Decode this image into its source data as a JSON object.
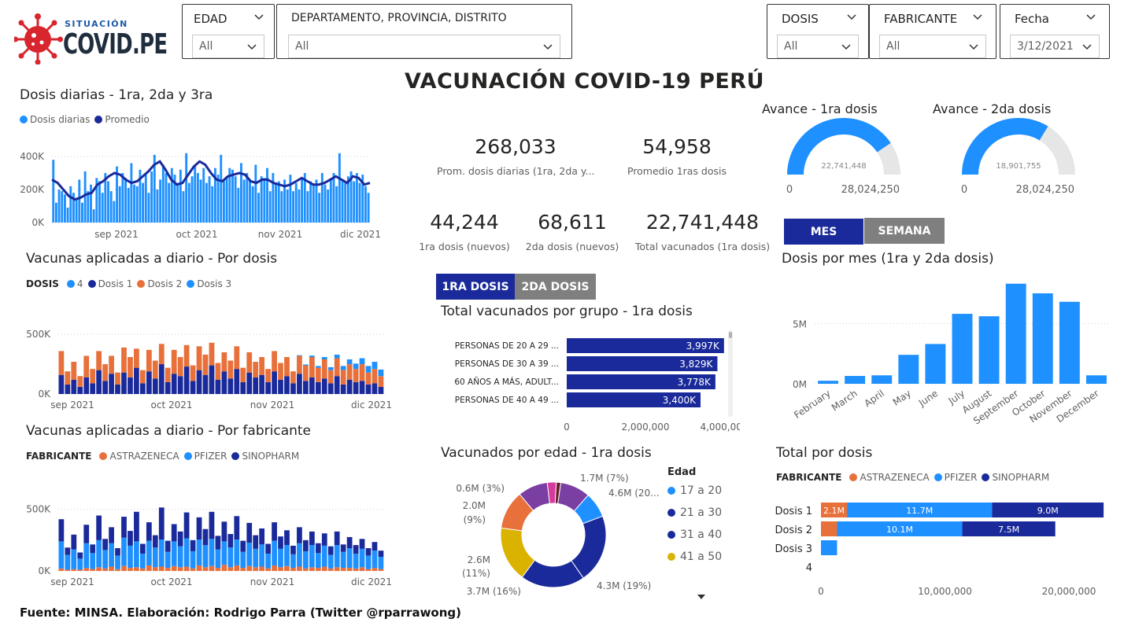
{
  "colors": {
    "blue_light": "#1e90ff",
    "navy": "#1a2a9a",
    "orange": "#e8703a",
    "gold": "#d9b300",
    "purple": "#7b3ea3",
    "magenta": "#d63a9e",
    "dark_red": "#6b1d2b",
    "gauge_bg": "#e6e6e6",
    "logo_red": "#d7262e",
    "grey_btn": "#7f7f7f"
  },
  "logo": {
    "top": "SITUACIÓN",
    "main": "COVID.PE"
  },
  "filters": {
    "edad": {
      "label": "EDAD",
      "value": "All"
    },
    "depto": {
      "label": "DEPARTAMENTO, PROVINCIA, DISTRITO",
      "value": "All"
    },
    "dosis": {
      "label": "DOSIS",
      "value": "All"
    },
    "fabricante": {
      "label": "FABRICANTE",
      "value": "All"
    },
    "fecha": {
      "label": "Fecha",
      "value": "3/12/2021"
    }
  },
  "main_title": "VACUNACIÓN COVID-19 PERÚ",
  "kpis": {
    "prom_dosis": {
      "value": "268,033",
      "label": "Prom. dosis diarias (1ra, 2da y..."
    },
    "prom_1ras": {
      "value": "54,958",
      "label": "Promedio 1ras dosis"
    },
    "dosis1": {
      "value": "44,244",
      "label": "1ra dosis (nuevos)"
    },
    "dosis2": {
      "value": "68,611",
      "label": "2da dosis (nuevos)"
    },
    "total_vac": {
      "value": "22,741,448",
      "label": "Total vacunados (1ra dosis)"
    }
  },
  "gauges": {
    "g1": {
      "title": "Avance - 1ra dosis",
      "value": "22,741,448",
      "min": "0",
      "max": "28,024,250",
      "fraction": 0.8115
    },
    "g2": {
      "title": "Avance - 2da dosis",
      "value": "18,901,755",
      "min": "0",
      "max": "28,024,250",
      "fraction": 0.6745
    }
  },
  "toggles": {
    "mes": "MES",
    "semana": "SEMANA",
    "d1": "1RA DOSIS",
    "d2": "2DA DOSIS"
  },
  "footer": "Fuente: MINSA. Elaboración: Rodrigo Parra (Twitter @rparrawong)",
  "chart_data": [
    {
      "id": "daily",
      "type": "bar",
      "title": "Dosis diarias - 1ra, 2da y 3ra",
      "legend": [
        "Dosis diarias",
        "Promedio"
      ],
      "yticks": [
        "400K",
        "200K",
        "0K"
      ],
      "ylim": [
        0,
        500000
      ],
      "xticks": [
        "sep 2021",
        "oct 2021",
        "nov 2021",
        "dic 2021"
      ],
      "series": [
        {
          "name": "Dosis diarias",
          "values": [
            380000,
            120000,
            200000,
            190000,
            170000,
            90000,
            220000,
            180000,
            140000,
            260000,
            120000,
            310000,
            190000,
            230000,
            80000,
            270000,
            250000,
            180000,
            300000,
            250000,
            190000,
            130000,
            340000,
            220000,
            300000,
            270000,
            210000,
            360000,
            230000,
            220000,
            320000,
            240000,
            290000,
            180000,
            310000,
            410000,
            200000,
            260000,
            350000,
            300000,
            240000,
            330000,
            290000,
            240000,
            320000,
            190000,
            420000,
            240000,
            280000,
            350000,
            300000,
            260000,
            330000,
            240000,
            280000,
            220000,
            330000,
            290000,
            410000,
            260000,
            280000,
            330000,
            320000,
            280000,
            210000,
            360000,
            260000,
            300000,
            260000,
            220000,
            350000,
            180000,
            280000,
            270000,
            330000,
            190000,
            300000,
            240000,
            250000,
            190000,
            260000,
            200000,
            290000,
            190000,
            240000,
            200000,
            270000,
            300000,
            190000,
            250000,
            230000,
            260000,
            180000,
            300000,
            230000,
            200000,
            260000,
            300000,
            220000,
            420000,
            250000,
            240000,
            280000,
            310000,
            250000,
            300000,
            240000,
            290000,
            220000,
            180000
          ]
        },
        {
          "name": "Promedio",
          "values": [
            260000,
            240000,
            200000,
            160000,
            140000,
            150000,
            170000,
            180000,
            230000,
            250000,
            280000,
            300000,
            290000,
            260000,
            240000,
            250000,
            280000,
            310000,
            350000,
            370000,
            320000,
            260000,
            230000,
            240000,
            290000,
            340000,
            370000,
            350000,
            300000,
            260000,
            250000,
            280000,
            290000,
            300000,
            290000,
            250000,
            240000,
            260000,
            260000,
            240000,
            230000,
            220000,
            230000,
            250000,
            270000,
            250000,
            230000,
            230000,
            240000,
            260000,
            280000,
            260000,
            240000,
            280000,
            270000,
            230000,
            240000
          ]
        }
      ]
    },
    {
      "id": "pordosis",
      "type": "bar",
      "title": "Vacunas aplicadas a diario - Por dosis",
      "legend_title": "DOSIS",
      "legend": [
        "4",
        "Dosis 1",
        "Dosis 2",
        "Dosis 3"
      ],
      "yticks": [
        "500K",
        "0K"
      ],
      "ylim": [
        0,
        600000
      ],
      "xticks": [
        "sep 2021",
        "oct 2021",
        "nov 2021",
        "dic 2021"
      ],
      "series": [
        {
          "name": "Dosis 1",
          "values": [
            160000,
            80000,
            120000,
            60000,
            140000,
            90000,
            200000,
            110000,
            170000,
            80000,
            180000,
            140000,
            220000,
            90000,
            190000,
            130000,
            250000,
            100000,
            170000,
            150000,
            230000,
            110000,
            200000,
            160000,
            240000,
            120000,
            190000,
            130000,
            210000,
            100000,
            180000,
            140000,
            160000,
            100000,
            190000,
            120000,
            150000,
            90000,
            170000,
            110000,
            140000,
            100000,
            130000,
            90000,
            150000,
            80000,
            120000,
            100000,
            110000,
            80000,
            90000,
            60000
          ]
        },
        {
          "name": "Dosis 2",
          "values": [
            200000,
            110000,
            150000,
            90000,
            180000,
            120000,
            160000,
            140000,
            150000,
            100000,
            210000,
            170000,
            160000,
            110000,
            180000,
            150000,
            170000,
            120000,
            200000,
            160000,
            180000,
            130000,
            200000,
            170000,
            190000,
            140000,
            160000,
            150000,
            190000,
            120000,
            170000,
            130000,
            150000,
            110000,
            170000,
            140000,
            160000,
            100000,
            150000,
            130000,
            170000,
            120000,
            160000,
            110000,
            150000,
            120000,
            130000,
            110000,
            140000,
            100000,
            120000,
            90000
          ]
        },
        {
          "name": "Dosis 3",
          "values": [
            0,
            0,
            0,
            0,
            0,
            0,
            0,
            0,
            0,
            0,
            0,
            0,
            0,
            0,
            0,
            0,
            0,
            0,
            0,
            0,
            0,
            0,
            0,
            0,
            0,
            0,
            0,
            0,
            0,
            0,
            0,
            0,
            0,
            0,
            0,
            0,
            0,
            0,
            5000,
            8000,
            12000,
            15000,
            20000,
            25000,
            30000,
            35000,
            40000,
            45000,
            50000,
            55000,
            60000,
            55000
          ]
        }
      ]
    },
    {
      "id": "porfab",
      "type": "bar",
      "title": "Vacunas aplicadas a diario - Por fabricante",
      "legend_title": "FABRICANTE",
      "legend": [
        "ASTRAZENECA",
        "PFIZER",
        "SINOPHARM"
      ],
      "yticks": [
        "500K",
        "0K"
      ],
      "ylim": [
        0,
        600000
      ],
      "xticks": [
        "sep 2021",
        "oct 2021",
        "nov 2021",
        "dic 2021"
      ],
      "series": [
        {
          "name": "ASTRAZENECA",
          "values": [
            20000,
            10000,
            15000,
            10000,
            25000,
            15000,
            30000,
            20000,
            35000,
            15000,
            40000,
            25000,
            30000,
            20000,
            45000,
            30000,
            35000,
            25000,
            40000,
            30000,
            35000,
            20000,
            45000,
            30000,
            40000,
            25000,
            50000,
            30000,
            45000,
            25000,
            40000,
            30000,
            35000,
            20000,
            45000,
            30000,
            40000,
            25000,
            35000,
            20000,
            30000,
            25000,
            35000,
            20000,
            30000,
            25000,
            25000,
            20000,
            30000,
            15000,
            25000,
            15000
          ]
        },
        {
          "name": "PFIZER",
          "values": [
            220000,
            120000,
            160000,
            90000,
            200000,
            130000,
            220000,
            150000,
            190000,
            110000,
            230000,
            180000,
            210000,
            120000,
            200000,
            160000,
            220000,
            130000,
            200000,
            170000,
            230000,
            140000,
            210000,
            180000,
            220000,
            150000,
            190000,
            160000,
            210000,
            130000,
            190000,
            150000,
            180000,
            120000,
            200000,
            150000,
            170000,
            110000,
            190000,
            140000,
            180000,
            120000,
            170000,
            110000,
            180000,
            130000,
            160000,
            120000,
            150000,
            110000,
            140000,
            100000
          ]
        },
        {
          "name": "SINOPHARM",
          "values": [
            180000,
            60000,
            120000,
            50000,
            150000,
            70000,
            200000,
            90000,
            130000,
            60000,
            170000,
            120000,
            240000,
            80000,
            150000,
            100000,
            260000,
            90000,
            140000,
            120000,
            210000,
            90000,
            180000,
            130000,
            220000,
            110000,
            160000,
            110000,
            190000,
            90000,
            160000,
            110000,
            130000,
            80000,
            150000,
            100000,
            120000,
            70000,
            130000,
            90000,
            110000,
            80000,
            100000,
            70000,
            110000,
            60000,
            90000,
            70000,
            80000,
            60000,
            70000,
            50000
          ]
        }
      ]
    },
    {
      "id": "grupo",
      "type": "bar",
      "title": "Total vacunados por grupo - 1ra dosis",
      "categories": [
        "PERSONAS DE 20 A 29 ...",
        "PERSONAS DE 30 A 39 ...",
        "60 AÑOS A MÁS, ADULT...",
        "PERSONAS DE 40 A 49 ..."
      ],
      "values": [
        3997000,
        3829000,
        3778000,
        3400000
      ],
      "labels": [
        "3,997K",
        "3,829K",
        "3,778K",
        "3,400K"
      ],
      "xticks": [
        "0",
        "2,000,000",
        "4,000,000"
      ],
      "xlim": [
        0,
        4000000
      ]
    },
    {
      "id": "edad",
      "type": "pie",
      "title": "Vacunados por edad - 1ra dosis",
      "legend_title": "Edad",
      "legend": [
        "17 a 20",
        "21 a 30",
        "31 a 40",
        "41 a 50"
      ],
      "values": [
        1.7,
        4.6,
        4.3,
        3.7,
        2.6,
        2.0,
        0.6,
        0.3,
        2.0
      ],
      "labels": [
        "1.7M (7%)",
        "4.6M (20...",
        "4.3M (19%)",
        "3.7M (16%)",
        "2.6M",
        "(11%)",
        "2.0M",
        "(9%)",
        "0.6M (3%)"
      ]
    },
    {
      "id": "mes",
      "type": "bar",
      "title": "Dosis por mes (1ra y 2da dosis)",
      "categories": [
        "February",
        "March",
        "April",
        "May",
        "June",
        "July",
        "August",
        "September",
        "October",
        "November",
        "December"
      ],
      "values": [
        250000,
        650000,
        700000,
        2400000,
        3300000,
        5800000,
        5600000,
        8300000,
        7500000,
        6800000,
        700000
      ],
      "yticks": [
        "5M",
        "0M"
      ],
      "ylim": [
        0,
        9000000
      ]
    },
    {
      "id": "total",
      "type": "bar",
      "title": "Total por dosis",
      "legend_title": "FABRICANTE",
      "legend": [
        "ASTRAZENECA",
        "PFIZER",
        "SINOPHARM"
      ],
      "categories": [
        "Dosis 1",
        "Dosis 2",
        "Dosis 3",
        "4"
      ],
      "series": [
        {
          "name": "ASTRAZENECA",
          "values": [
            2100000,
            1300000,
            0,
            0
          ],
          "labels": [
            "2.1M",
            "",
            "",
            ""
          ]
        },
        {
          "name": "PFIZER",
          "values": [
            11700000,
            10100000,
            1300000,
            0
          ],
          "labels": [
            "11.7M",
            "10.1M",
            "",
            ""
          ]
        },
        {
          "name": "SINOPHARM",
          "values": [
            9000000,
            7500000,
            0,
            0
          ],
          "labels": [
            "9.0M",
            "7.5M",
            "",
            ""
          ]
        }
      ],
      "xticks": [
        "0",
        "10,000,000",
        "20,000,000"
      ],
      "xlim": [
        0,
        20000000
      ]
    }
  ]
}
